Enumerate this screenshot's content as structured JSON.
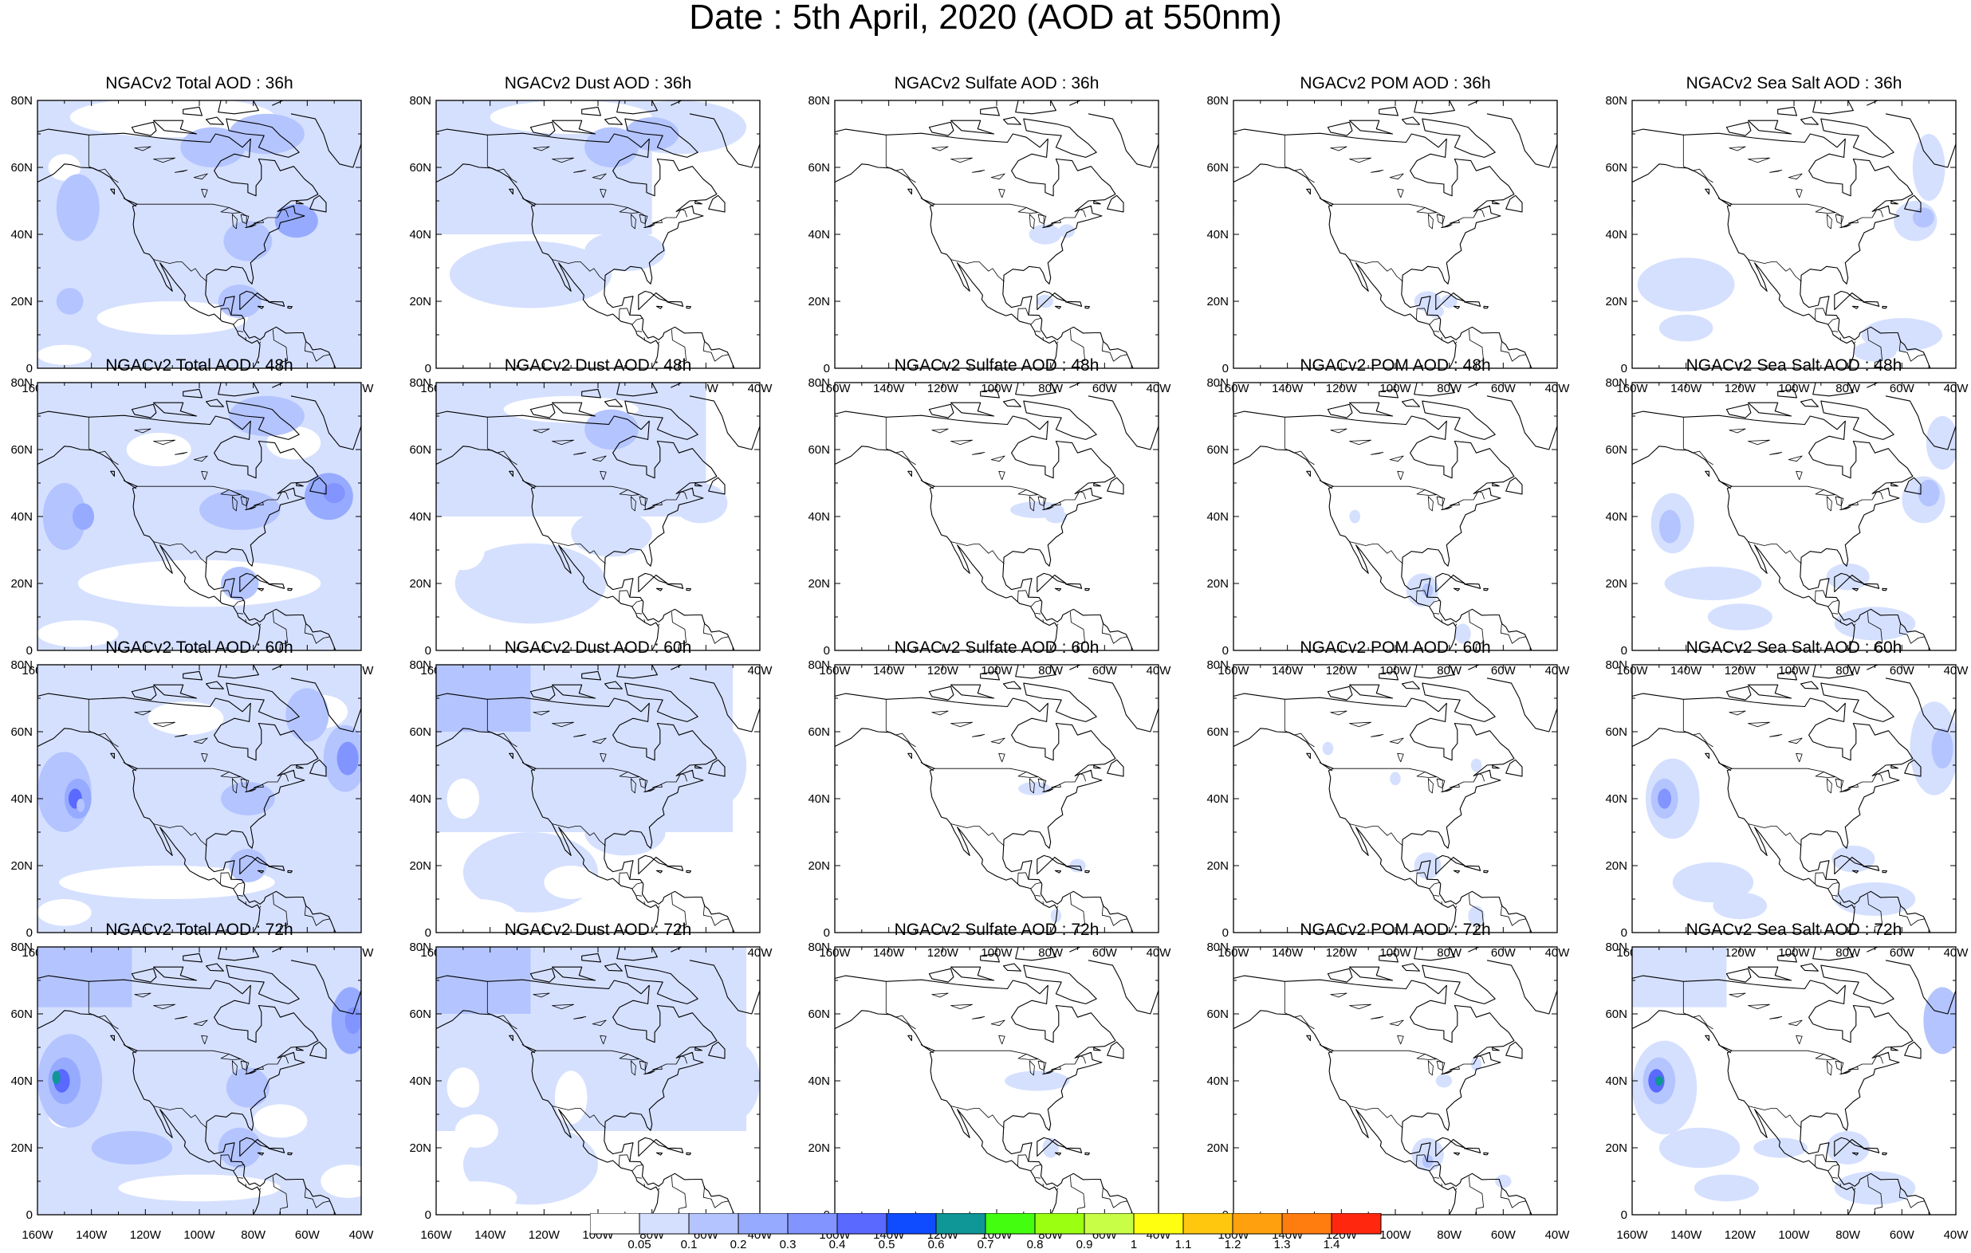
{
  "title": "Date : 5th April, 2020 (AOD at 550nm)",
  "panel_titles": [
    [
      "NGACv2 Total AOD : 36h",
      "NGACv2 Dust AOD : 36h",
      "NGACv2 Sulfate AOD : 36h",
      "NGACv2 POM AOD : 36h",
      "NGACv2 Sea Salt AOD : 36h"
    ],
    [
      "NGACv2 Total AOD : 48h",
      "NGACv2 Dust AOD : 48h",
      "NGACv2 Sulfate AOD : 48h",
      "NGACv2 POM AOD : 48h",
      "NGACv2 Sea Salt AOD : 48h"
    ],
    [
      "NGACv2 Total AOD : 60h",
      "NGACv2 Dust AOD : 60h",
      "NGACv2 Sulfate AOD : 60h",
      "NGACv2 POM AOD : 60h",
      "NGACv2 Sea Salt AOD : 60h"
    ],
    [
      "NGACv2 Total AOD : 72h",
      "NGACv2 Dust AOD : 72h",
      "NGACv2 Sulfate AOD : 72h",
      "NGACv2 POM AOD : 72h",
      "NGACv2 Sea Salt  AOD : 72h"
    ]
  ],
  "map_axes": {
    "lon_min": -160,
    "lon_max": -40,
    "lat_min": 0,
    "lat_max": 80,
    "x_ticks": [
      -160,
      -140,
      -120,
      -100,
      -80,
      -60,
      -40
    ],
    "x_tick_labels": [
      "160W",
      "140W",
      "120W",
      "100W",
      "80W",
      "60W",
      "40W"
    ],
    "y_ticks": [
      0,
      20,
      40,
      60,
      80
    ],
    "y_tick_labels": [
      "0",
      "20N",
      "40N",
      "60N",
      "80N"
    ]
  },
  "colorbar": {
    "labels": [
      "0.05",
      "0.1",
      "0.2",
      "0.3",
      "0.4",
      "0.5",
      "0.6",
      "0.7",
      "0.8",
      "0.9",
      "1",
      "1.1",
      "1.2",
      "1.3",
      "1.4"
    ],
    "colors": [
      "#ffffff",
      "#d5e0ff",
      "#b4c4ff",
      "#96abff",
      "#8294ff",
      "#5a69ff",
      "#0f4bff",
      "#0f9696",
      "#43ff0f",
      "#9bff12",
      "#c8ff46",
      "#ffff0f",
      "#ffc80f",
      "#ffa00f",
      "#ff7d0f",
      "#ff280f"
    ]
  }
}
